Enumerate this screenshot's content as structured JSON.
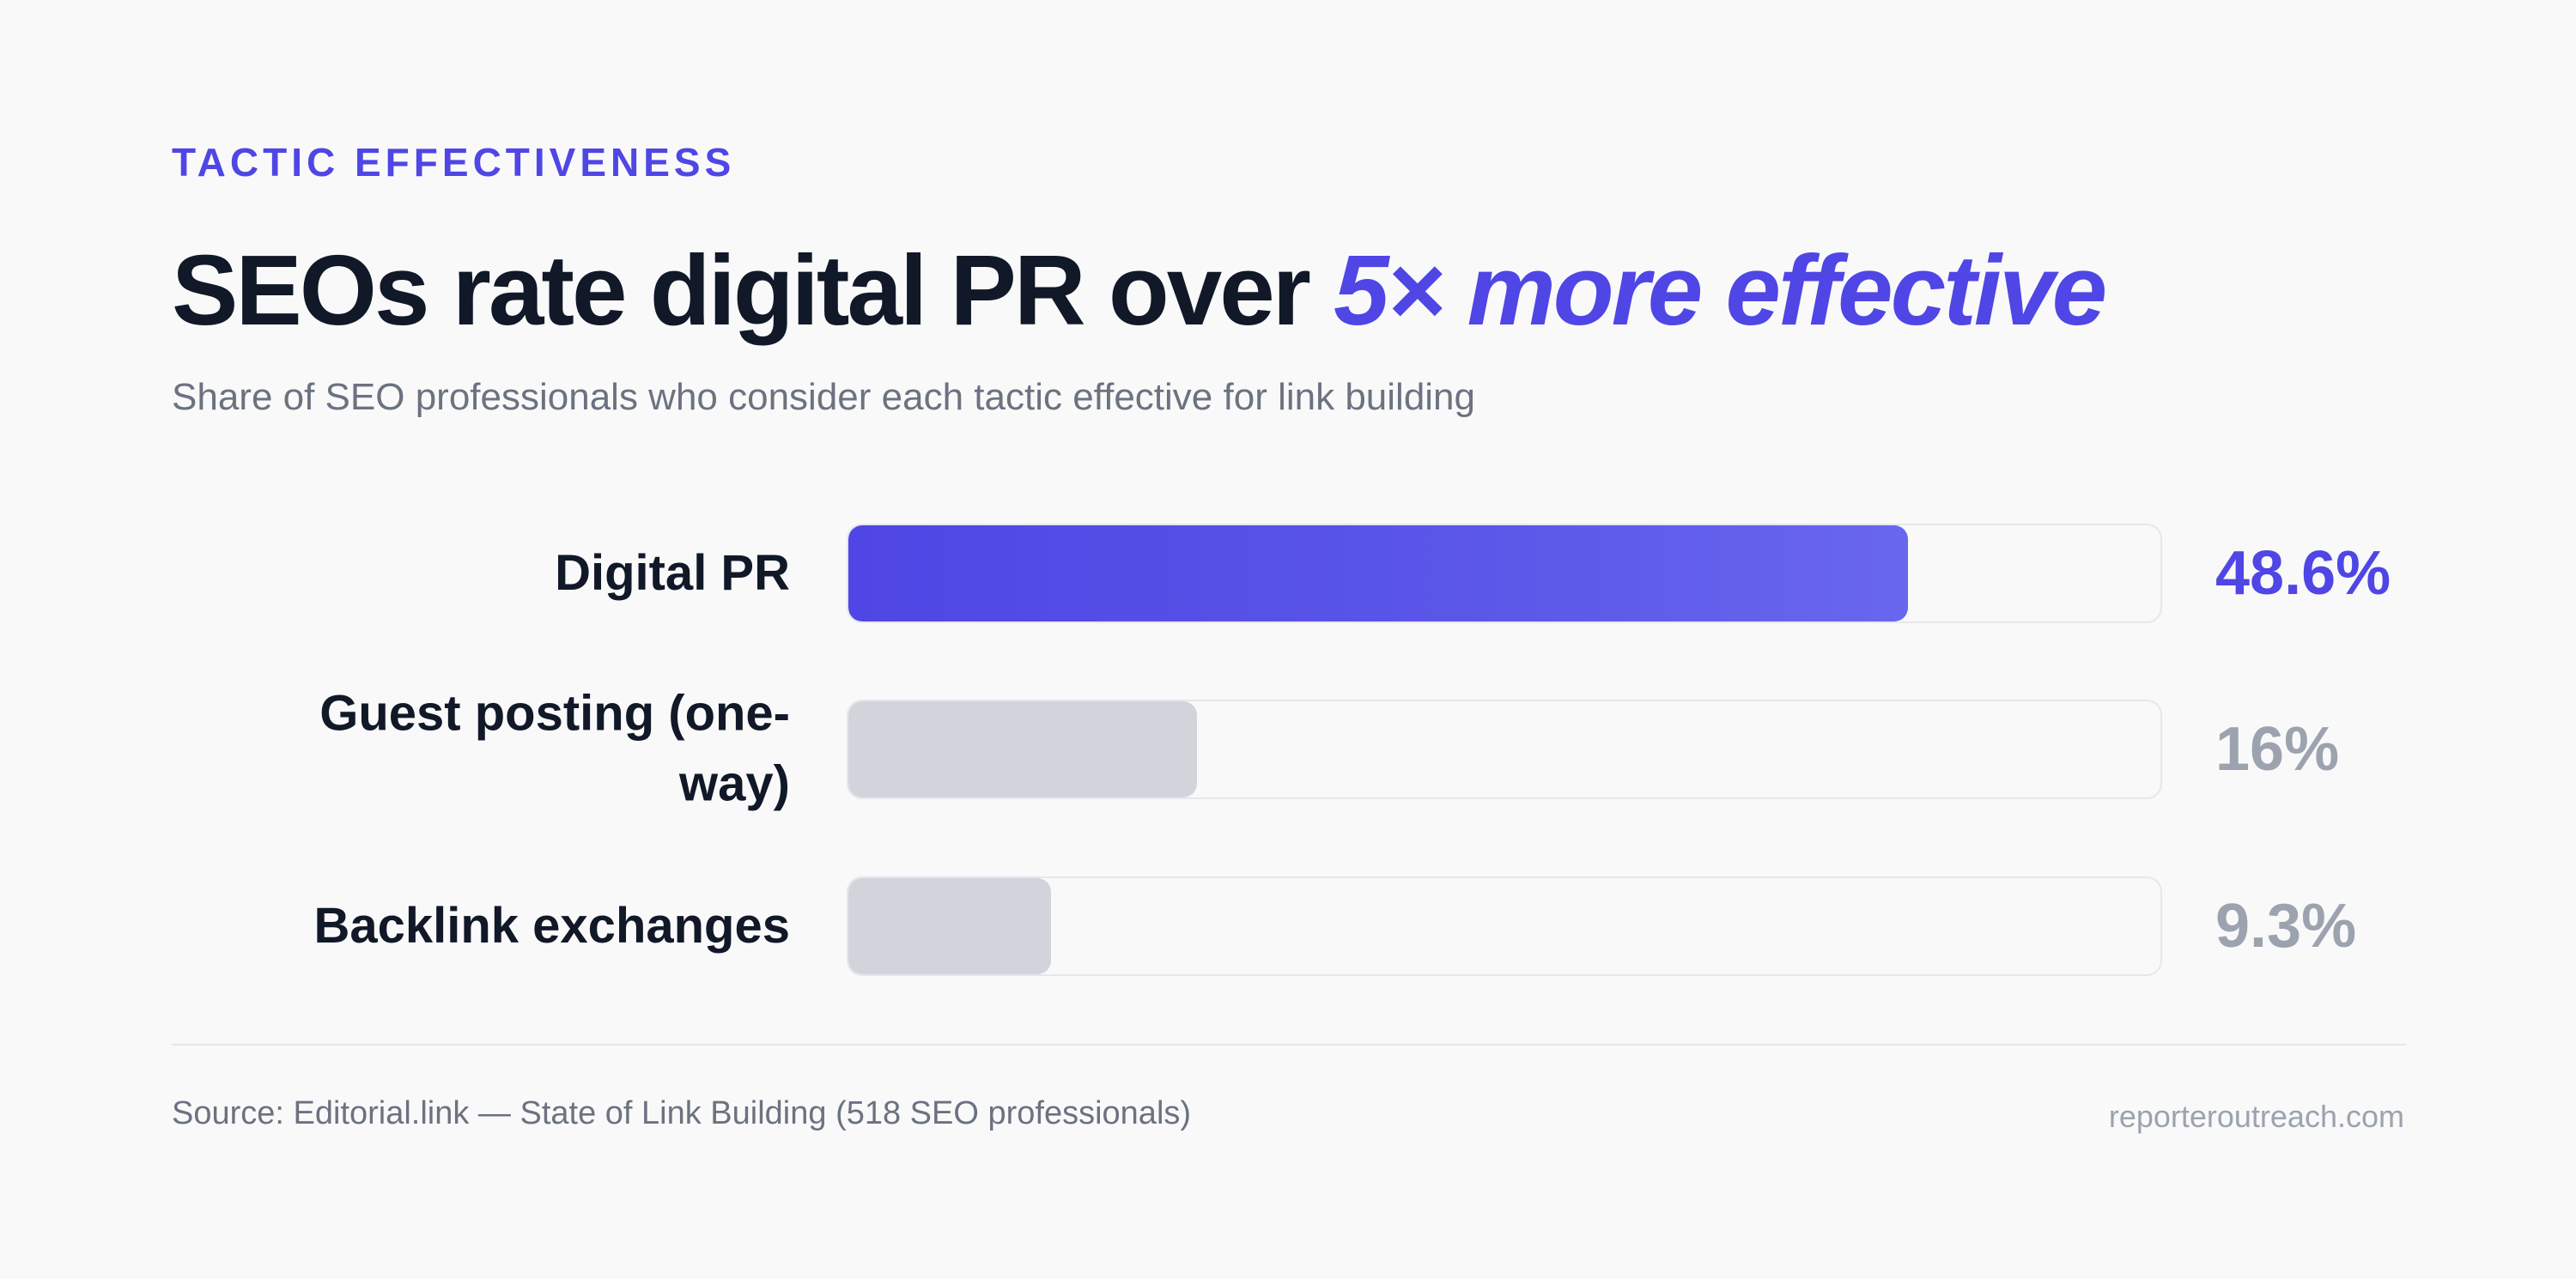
{
  "eyebrow": "TACTIC EFFECTIVENESS",
  "headline": {
    "main": "SEOs rate digital PR over ",
    "accent": "5× more effective"
  },
  "subtitle": "Share of SEO professionals who consider each tactic effective for link building",
  "colors": {
    "accent": "#4f46e5",
    "muted_bar": "#d1d5db",
    "muted_value": "#9ca3af",
    "text": "#111827"
  },
  "chart_data": {
    "type": "bar",
    "orientation": "horizontal",
    "categories": [
      "Digital PR",
      "Guest posting (one-way)",
      "Backlink exchanges"
    ],
    "values": [
      48.6,
      16,
      9.3
    ],
    "value_labels": [
      "48.6%",
      "16%",
      "9.3%"
    ],
    "highlight": [
      true,
      false,
      false
    ],
    "xlim": [
      0,
      60
    ],
    "unit": "%",
    "grid": false
  },
  "source": "Source: Editorial.link — State of Link Building (518 SEO professionals)",
  "site": "reporteroutreach.com"
}
